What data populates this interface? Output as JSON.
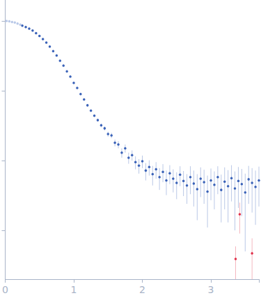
{
  "chart_data": {
    "type": "scatter",
    "log": "y",
    "grid": false,
    "tick_labels": "x",
    "xlim": [
      0,
      3.7
    ],
    "xticks": [
      0,
      1,
      2,
      3
    ],
    "ylim": [
      0.0002,
      2
    ],
    "yticks": [
      0.001,
      0.01,
      0.1,
      1
    ],
    "series": [
      {
        "color": "#b9c9e8",
        "x": [
          0.02,
          0.06,
          0.1,
          0.14,
          0.18,
          0.22
        ],
        "values": [
          1.0,
          0.99,
          0.97,
          0.95,
          0.92,
          0.89
        ],
        "errors": [
          0.004,
          0.004,
          0.004,
          0.004,
          0.004,
          0.004
        ]
      },
      {
        "color": "#3a62b8",
        "x": [
          0.25,
          0.3,
          0.35,
          0.4,
          0.45,
          0.5,
          0.55,
          0.6,
          0.65,
          0.7,
          0.75,
          0.8,
          0.85,
          0.9,
          0.95,
          1.0,
          1.05,
          1.1,
          1.15,
          1.2,
          1.25,
          1.3,
          1.35,
          1.4,
          1.45,
          1.5,
          1.55,
          1.6,
          1.65,
          1.7,
          1.75,
          1.8,
          1.85,
          1.9,
          1.95,
          2.0,
          2.05,
          2.1,
          2.15,
          2.2,
          2.25,
          2.3,
          2.35,
          2.4,
          2.45,
          2.5,
          2.55,
          2.6,
          2.65,
          2.7,
          2.75,
          2.8,
          2.85,
          2.9,
          2.95,
          3.0,
          3.05,
          3.1,
          3.15,
          3.2,
          3.25,
          3.3,
          3.35,
          3.4,
          3.45,
          3.5,
          3.55,
          3.6,
          3.65,
          3.7
        ],
        "values": [
          0.86,
          0.82,
          0.78,
          0.73,
          0.67,
          0.61,
          0.55,
          0.49,
          0.43,
          0.37,
          0.32,
          0.27,
          0.23,
          0.19,
          0.16,
          0.13,
          0.11,
          0.09,
          0.075,
          0.062,
          0.052,
          0.044,
          0.038,
          0.032,
          0.029,
          0.024,
          0.023,
          0.018,
          0.017,
          0.013,
          0.015,
          0.011,
          0.012,
          0.0095,
          0.0085,
          0.0098,
          0.0072,
          0.0081,
          0.0064,
          0.0075,
          0.0058,
          0.0069,
          0.0052,
          0.0066,
          0.0055,
          0.0048,
          0.0063,
          0.0051,
          0.0044,
          0.0058,
          0.0047,
          0.0039,
          0.0055,
          0.0049,
          0.0036,
          0.0052,
          0.0045,
          0.0058,
          0.0038,
          0.005,
          0.0043,
          0.0056,
          0.004,
          0.0051,
          0.0046,
          0.0035,
          0.0054,
          0.0048,
          0.0042,
          0.0052
        ],
        "errors": [
          0.004,
          0.004,
          0.004,
          0.004,
          0.004,
          0.004,
          0.004,
          0.004,
          0.003,
          0.003,
          0.003,
          0.003,
          0.002,
          0.002,
          0.002,
          0.002,
          0.002,
          0.0015,
          0.0015,
          0.0015,
          0.0015,
          0.0015,
          0.0015,
          0.002,
          0.002,
          0.002,
          0.002,
          0.002,
          0.002,
          0.002,
          0.002,
          0.002,
          0.002,
          0.002,
          0.002,
          0.002,
          0.002,
          0.002,
          0.002,
          0.002,
          0.002,
          0.002,
          0.002,
          0.002,
          0.002,
          0.002,
          0.002,
          0.002,
          0.002,
          0.0025,
          0.0025,
          0.0025,
          0.0025,
          0.0025,
          0.0025,
          0.0025,
          0.0025,
          0.0025,
          0.0025,
          0.003,
          0.003,
          0.003,
          0.003,
          0.003,
          0.003,
          0.003,
          0.003,
          0.003,
          0.003,
          0.003
        ]
      },
      {
        "color": "#e0304a",
        "x": [
          3.36,
          3.42,
          3.6
        ],
        "values": [
          0.00039,
          0.0017,
          0.00047
        ],
        "errors": [
          0.0002,
          0.0008,
          0.0003
        ]
      }
    ]
  }
}
